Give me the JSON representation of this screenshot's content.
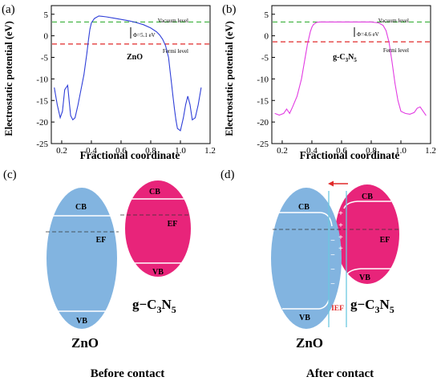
{
  "chart_data": [
    {
      "panel_label": "(a)",
      "type": "line",
      "ylabel": "Electrostatic potential (eV)",
      "xlabel": "Fractional coordinate",
      "xlim": [
        0.13,
        1.2
      ],
      "ylim": [
        -25,
        7
      ],
      "xticks": [
        "0.2",
        "0.4",
        "0.6",
        "0.8",
        "1.0",
        "1.2"
      ],
      "xtick_values": [
        0.2,
        0.4,
        0.6,
        0.8,
        1.0,
        1.2
      ],
      "yticks": [
        "-25",
        "-20",
        "-15",
        "-10",
        "-5",
        "0",
        "5"
      ],
      "ytick_values": [
        -25,
        -20,
        -15,
        -10,
        -5,
        0,
        5
      ],
      "material_label": "ZnO",
      "vacuum_label": "Vacuum level",
      "fermi_label": "Fermi level",
      "vacuum_level": 3.2,
      "fermi_level": -1.9,
      "work_function_label": "Φ=5.1 eV",
      "colors": {
        "curve": "#2f3fd8",
        "vacuum": "#3ab03a",
        "fermi": "#e02a2a"
      },
      "series": [
        {
          "x": [
            0.15,
            0.17,
            0.19,
            0.205,
            0.22,
            0.24,
            0.25,
            0.26,
            0.275,
            0.29,
            0.31,
            0.33,
            0.35,
            0.37,
            0.38,
            0.39,
            0.4,
            0.42,
            0.45,
            0.5,
            0.55,
            0.6,
            0.65,
            0.7,
            0.75,
            0.8,
            0.84,
            0.86,
            0.88,
            0.9,
            0.92,
            0.93,
            0.94,
            0.95,
            0.96,
            0.97,
            0.98,
            1.0,
            1.02,
            1.035,
            1.05,
            1.065,
            1.08,
            1.1,
            1.12,
            1.14
          ],
          "y": [
            -12,
            -16,
            -19,
            -17.5,
            -12.5,
            -11.5,
            -15,
            -18.5,
            -19.5,
            -19,
            -16,
            -12.5,
            -9,
            -4,
            -1,
            1.5,
            3,
            4,
            4.6,
            4.4,
            4.1,
            3.8,
            3.5,
            3.1,
            2.6,
            1.8,
            0.9,
            0.2,
            -0.8,
            -2.3,
            -5,
            -8,
            -11,
            -14,
            -17,
            -19.5,
            -21.5,
            -22,
            -19,
            -16,
            -14,
            -16,
            -19.5,
            -19,
            -16,
            -12
          ]
        }
      ]
    },
    {
      "panel_label": "(b)",
      "type": "line",
      "ylabel": "Electrostatic potential (eV)",
      "xlabel": "Fractional coordinate",
      "xlim": [
        0.13,
        1.2
      ],
      "ylim": [
        -25,
        7
      ],
      "xticks": [
        "0.2",
        "0.4",
        "0.6",
        "0.8",
        "1.0",
        "1.2"
      ],
      "xtick_values": [
        0.2,
        0.4,
        0.6,
        0.8,
        1.0,
        1.2
      ],
      "yticks": [
        "-25",
        "-20",
        "-15",
        "-10",
        "-5",
        "0",
        "5"
      ],
      "ytick_values": [
        -25,
        -20,
        -15,
        -10,
        -5,
        0,
        5
      ],
      "material_label_main": "g-C",
      "material_sub1": "3",
      "material_mid": "N",
      "material_sub2": "5",
      "vacuum_label": "Vacuum level",
      "fermi_label": "Fermi level",
      "vacuum_level": 3.2,
      "fermi_level": -1.4,
      "work_function_label": "Φ=4.6 eV",
      "colors": {
        "curve": "#e23be2",
        "vacuum": "#3ab03a",
        "fermi": "#e02a2a"
      },
      "series": [
        {
          "x": [
            0.15,
            0.18,
            0.21,
            0.23,
            0.25,
            0.27,
            0.3,
            0.33,
            0.35,
            0.37,
            0.39,
            0.4,
            0.41,
            0.43,
            0.45,
            0.5,
            0.6,
            0.7,
            0.8,
            0.85,
            0.88,
            0.9,
            0.92,
            0.94,
            0.96,
            0.98,
            1.0,
            1.03,
            1.06,
            1.09,
            1.11,
            1.13,
            1.15,
            1.17
          ],
          "y": [
            -18,
            -18.4,
            -18,
            -17,
            -18,
            -16.5,
            -14,
            -10,
            -6,
            -2,
            1,
            2,
            2.6,
            3.1,
            3.2,
            3.2,
            3.2,
            3.2,
            3.2,
            3.0,
            2.4,
            1.2,
            -1.5,
            -6,
            -11,
            -15,
            -17.5,
            -18,
            -18.2,
            -17.8,
            -16.8,
            -16.5,
            -17.5,
            -18.5
          ]
        }
      ]
    }
  ],
  "panel_c": {
    "label": "(c)",
    "caption": "Before contact",
    "zno_label": "ZnO",
    "cb": "CB",
    "vb": "VB",
    "ef": "EF",
    "gcn_main": "g−C",
    "gcn_sub1": "3",
    "gcn_mid": "N",
    "gcn_sub2": "5"
  },
  "panel_d": {
    "label": "(d)",
    "caption": "After contact",
    "zno_label": "ZnO",
    "cb": "CB",
    "vb": "VB",
    "ef": "EF",
    "ief": "IEF",
    "plus": "+",
    "minus": "−",
    "gcn_main": "g−C",
    "gcn_sub1": "3",
    "gcn_mid": "N",
    "gcn_sub2": "5"
  },
  "colors": {
    "zno_fill": "#82b4e0",
    "gcn_fill": "#e8247a",
    "ief_line": "#6cc8e0",
    "arrow": "#e02a2a"
  }
}
